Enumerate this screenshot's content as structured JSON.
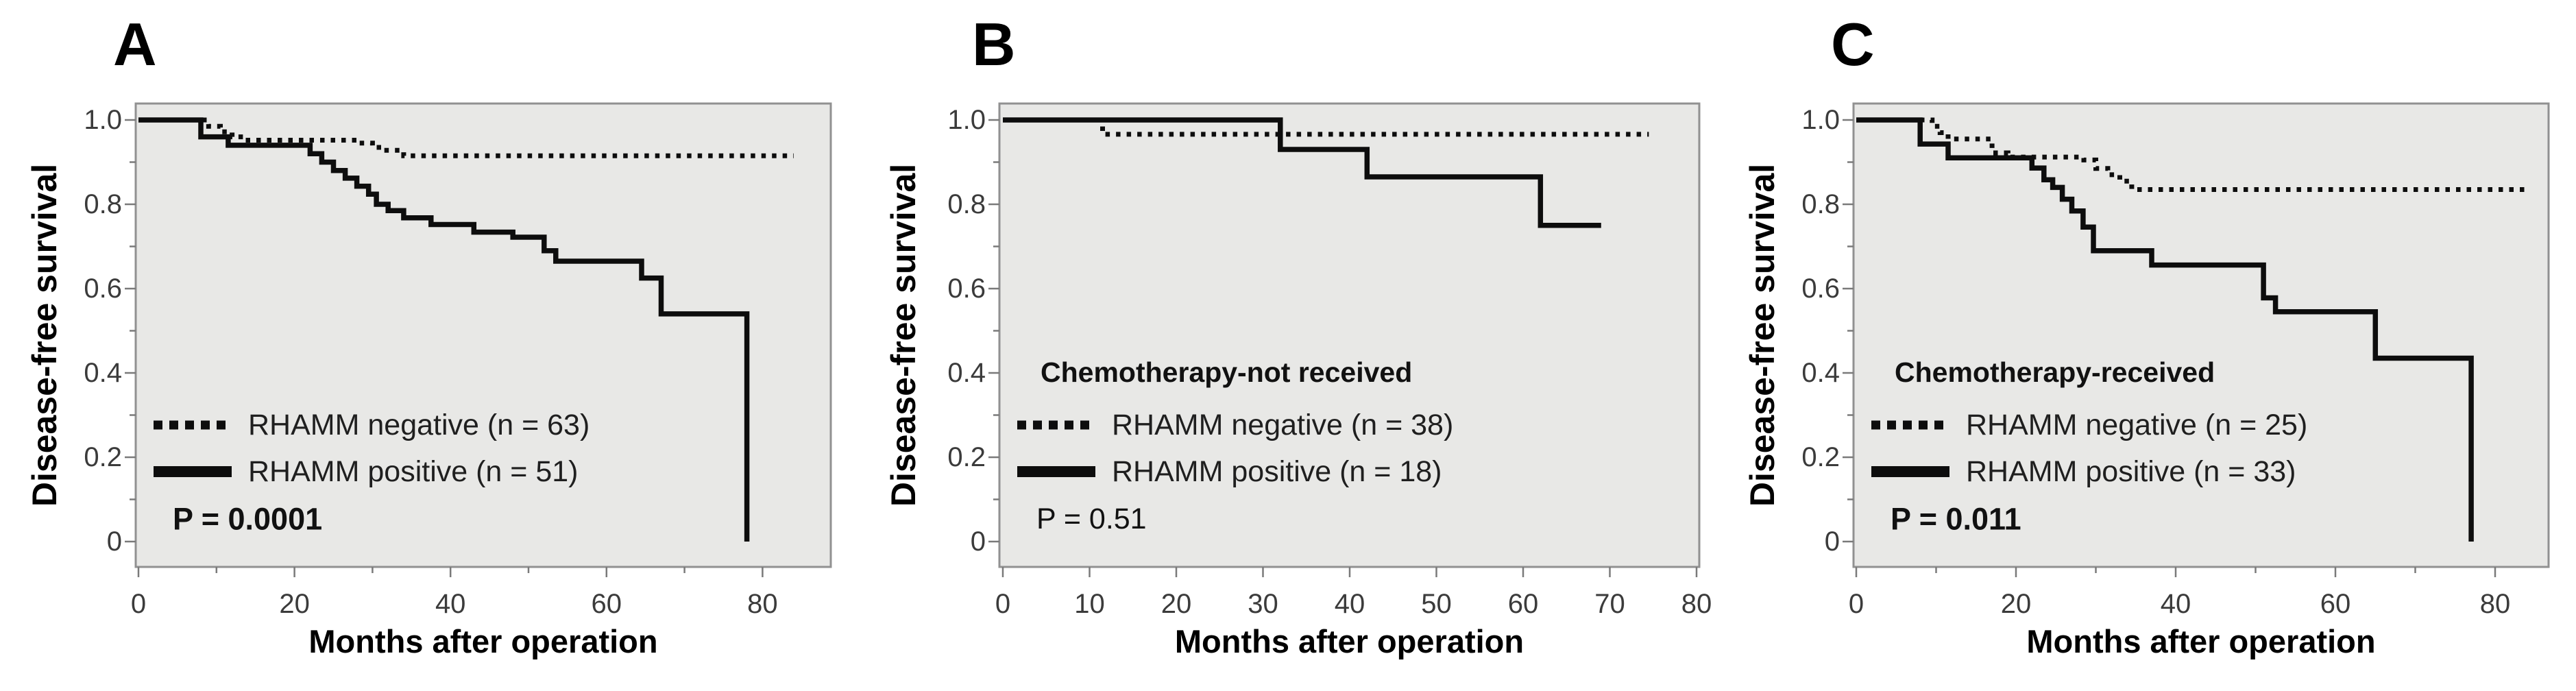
{
  "figure": {
    "y_axis_label": "Disease-free survival",
    "x_axis_label": "Months after operation",
    "colors": {
      "page_bg": "#ffffff",
      "plot_bg": "#e8e8e6",
      "frame_border": "#919191",
      "curve": "#0d0d0d",
      "tick_mark": "#7a7a7a",
      "tick_label": "#3b3b3b",
      "text": "#1f1f1f"
    }
  },
  "chart_data": [
    {
      "type": "line",
      "panel_letter": "A",
      "subtitle": "",
      "p_value": "P = 0.0001",
      "p_bold": true,
      "xlabel": "Months after operation",
      "ylabel": "Disease-free survival",
      "xlim": [
        0,
        89
      ],
      "ylim": [
        0,
        1.0
      ],
      "x_major_ticks": [
        0,
        20,
        40,
        60,
        80
      ],
      "x_minor_ticks": [
        10,
        30,
        50,
        70
      ],
      "y_major_ticks": [
        1.0,
        0.8,
        0.6,
        0.4,
        0.2,
        0
      ],
      "y_tick_labels": [
        "1.0",
        "0.8",
        "0.6",
        "0.4",
        "0.2",
        "0"
      ],
      "y_minor_ticks": [
        0.9,
        0.7,
        0.5,
        0.3,
        0.1
      ],
      "grid": false,
      "legend_position": "lower-left-inside",
      "legend": [
        {
          "label": "RHAMM negative (n = 63)",
          "style": "dotted"
        },
        {
          "label": "RHAMM positive (n = 51)",
          "style": "solid"
        }
      ],
      "series": [
        {
          "name": "RHAMM negative (n = 63)",
          "style": "dotted",
          "steps": [
            [
              0,
              1.0
            ],
            [
              9,
              0.985
            ],
            [
              10.5,
              0.972
            ],
            [
              12,
              0.96
            ],
            [
              13.5,
              0.952
            ],
            [
              28,
              0.945
            ],
            [
              30,
              0.935
            ],
            [
              31.5,
              0.928
            ],
            [
              34,
              0.915
            ],
            [
              84,
              0.915
            ]
          ]
        },
        {
          "name": "RHAMM positive (n = 51)",
          "style": "solid",
          "steps": [
            [
              0,
              1.0
            ],
            [
              8,
              0.96
            ],
            [
              11.5,
              0.94
            ],
            [
              22,
              0.92
            ],
            [
              23.5,
              0.9
            ],
            [
              25,
              0.88
            ],
            [
              26.5,
              0.862
            ],
            [
              28,
              0.843
            ],
            [
              29.5,
              0.824
            ],
            [
              30.5,
              0.8
            ],
            [
              32,
              0.785
            ],
            [
              34,
              0.768
            ],
            [
              37.5,
              0.752
            ],
            [
              43,
              0.734
            ],
            [
              48,
              0.722
            ],
            [
              52,
              0.69
            ],
            [
              53.5,
              0.665
            ],
            [
              64.5,
              0.625
            ],
            [
              67,
              0.54
            ],
            [
              78,
              0.0
            ]
          ]
        }
      ]
    },
    {
      "type": "line",
      "panel_letter": "B",
      "subtitle": "Chemotherapy-not received",
      "p_value": "P = 0.51",
      "p_bold": false,
      "xlabel": "Months after operation",
      "ylabel": "Disease-free survival",
      "xlim": [
        0,
        80.5
      ],
      "ylim": [
        0,
        1.0
      ],
      "x_major_ticks": [
        0,
        10,
        20,
        30,
        40,
        50,
        60,
        70,
        80
      ],
      "x_minor_ticks": [],
      "y_major_ticks": [
        1.0,
        0.8,
        0.6,
        0.4,
        0.2,
        0
      ],
      "y_tick_labels": [
        "1.0",
        "0.8",
        "0.6",
        "0.4",
        "0.2",
        "0"
      ],
      "y_minor_ticks": [
        0.9,
        0.7,
        0.5,
        0.3,
        0.1
      ],
      "grid": false,
      "legend_position": "lower-left-inside",
      "legend": [
        {
          "label": "RHAMM negative (n = 38)",
          "style": "dotted"
        },
        {
          "label": "RHAMM positive (n = 18)",
          "style": "solid"
        }
      ],
      "series": [
        {
          "name": "RHAMM negative (n = 38)",
          "style": "dotted",
          "steps": [
            [
              0,
              1.0
            ],
            [
              11.5,
              0.966
            ],
            [
              74.5,
              0.966
            ]
          ]
        },
        {
          "name": "RHAMM positive (n = 18)",
          "style": "solid",
          "steps": [
            [
              0,
              1.0
            ],
            [
              32,
              0.93
            ],
            [
              42,
              0.865
            ],
            [
              62,
              0.75
            ],
            [
              69,
              0.75
            ]
          ]
        }
      ]
    },
    {
      "type": "line",
      "panel_letter": "C",
      "subtitle": "Chemotherapy-received",
      "p_value": "P = 0.011",
      "p_bold": true,
      "xlabel": "Months after operation",
      "ylabel": "Disease-free survival",
      "xlim": [
        0,
        87
      ],
      "ylim": [
        0,
        1.0
      ],
      "x_major_ticks": [
        0,
        20,
        40,
        60,
        80
      ],
      "x_minor_ticks": [
        10,
        30,
        50,
        70
      ],
      "y_major_ticks": [
        1.0,
        0.8,
        0.6,
        0.4,
        0.2,
        0
      ],
      "y_tick_labels": [
        "1.0",
        "0.8",
        "0.6",
        "0.4",
        "0.2",
        "0"
      ],
      "y_minor_ticks": [
        0.9,
        0.7,
        0.5,
        0.3,
        0.1
      ],
      "grid": false,
      "legend_position": "lower-left-inside",
      "legend": [
        {
          "label": "RHAMM negative (n = 25)",
          "style": "dotted"
        },
        {
          "label": "RHAMM positive (n = 33)",
          "style": "solid"
        }
      ],
      "series": [
        {
          "name": "RHAMM negative (n = 25)",
          "style": "dotted",
          "steps": [
            [
              0,
              1.0
            ],
            [
              9.5,
              0.985
            ],
            [
              10.5,
              0.97
            ],
            [
              11.5,
              0.955
            ],
            [
              17,
              0.922
            ],
            [
              19,
              0.912
            ],
            [
              28.5,
              0.905
            ],
            [
              30,
              0.885
            ],
            [
              31.5,
              0.87
            ],
            [
              33,
              0.855
            ],
            [
              34.5,
              0.835
            ],
            [
              84,
              0.835
            ]
          ]
        },
        {
          "name": "RHAMM positive (n = 33)",
          "style": "solid",
          "steps": [
            [
              0,
              1.0
            ],
            [
              8,
              0.943
            ],
            [
              11.5,
              0.91
            ],
            [
              22,
              0.886
            ],
            [
              23.5,
              0.858
            ],
            [
              24.6,
              0.84
            ],
            [
              25.8,
              0.812
            ],
            [
              27,
              0.784
            ],
            [
              28.4,
              0.746
            ],
            [
              29.7,
              0.69
            ],
            [
              37,
              0.656
            ],
            [
              51,
              0.578
            ],
            [
              52.5,
              0.545
            ],
            [
              65,
              0.435
            ],
            [
              77,
              0.0
            ]
          ]
        }
      ]
    }
  ]
}
